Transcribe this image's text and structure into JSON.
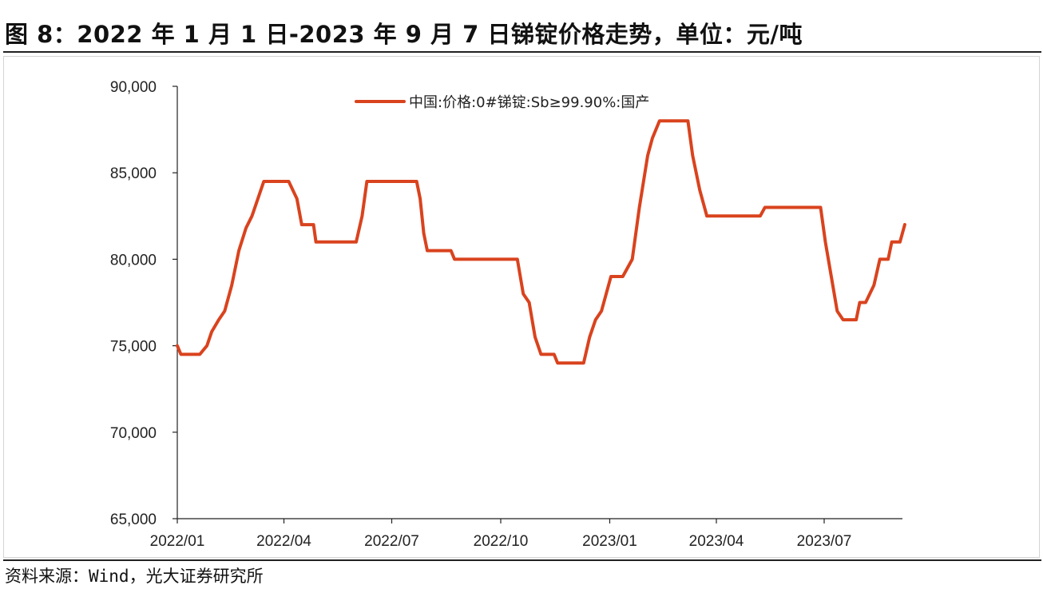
{
  "title": "图 8：2022 年 1 月 1 日-2023 年 9 月 7 日锑锭价格走势，单位：元/吨",
  "source": "资料来源：Wind，光大证券研究所",
  "chart_data": {
    "type": "line",
    "title": "图 8：2022 年 1 月 1 日-2023 年 9 月 7 日锑锭价格走势，单位：元/吨",
    "xlabel": "",
    "ylabel": "",
    "ylim": [
      65000,
      90000
    ],
    "y_ticks": [
      90000,
      85000,
      80000,
      75000,
      70000,
      65000
    ],
    "y_tick_labels": [
      "90,000",
      "85,000",
      "80,000",
      "75,000",
      "70,000",
      "65,000"
    ],
    "x_ticks": [
      "2022-01-01",
      "2022-04-01",
      "2022-07-01",
      "2022-10-01",
      "2023-01-01",
      "2023-04-01",
      "2023-07-01"
    ],
    "x_tick_labels": [
      "2022/01",
      "2022/04",
      "2022/07",
      "2022/10",
      "2023/01",
      "2023/04",
      "2023/07"
    ],
    "x_range": [
      "2022-01-01",
      "2023-09-07"
    ],
    "grid": false,
    "legend_position": "top-center",
    "series": [
      {
        "name": "中国:价格:0#锑锭:Sb≥99.90%:国产",
        "color": "#d9431e",
        "points": [
          [
            "2022-01-01",
            75000
          ],
          [
            "2022-01-04",
            74500
          ],
          [
            "2022-01-20",
            74500
          ],
          [
            "2022-01-26",
            75000
          ],
          [
            "2022-01-30",
            75800
          ],
          [
            "2022-02-05",
            76500
          ],
          [
            "2022-02-10",
            77000
          ],
          [
            "2022-02-16",
            78500
          ],
          [
            "2022-02-22",
            80500
          ],
          [
            "2022-02-28",
            81800
          ],
          [
            "2022-03-05",
            82500
          ],
          [
            "2022-03-10",
            83500
          ],
          [
            "2022-03-15",
            84500
          ],
          [
            "2022-04-05",
            84500
          ],
          [
            "2022-04-12",
            83500
          ],
          [
            "2022-04-16",
            82000
          ],
          [
            "2022-04-26",
            82000
          ],
          [
            "2022-04-28",
            81000
          ],
          [
            "2022-06-01",
            81000
          ],
          [
            "2022-06-06",
            82500
          ],
          [
            "2022-06-10",
            84500
          ],
          [
            "2022-07-22",
            84500
          ],
          [
            "2022-07-25",
            83500
          ],
          [
            "2022-07-28",
            81500
          ],
          [
            "2022-07-31",
            80500
          ],
          [
            "2022-08-20",
            80500
          ],
          [
            "2022-08-23",
            80000
          ],
          [
            "2022-10-15",
            80000
          ],
          [
            "2022-10-20",
            78000
          ],
          [
            "2022-10-25",
            77500
          ],
          [
            "2022-10-30",
            75500
          ],
          [
            "2022-11-04",
            74500
          ],
          [
            "2022-11-15",
            74500
          ],
          [
            "2022-11-18",
            74000
          ],
          [
            "2022-12-10",
            74000
          ],
          [
            "2022-12-15",
            75500
          ],
          [
            "2022-12-20",
            76500
          ],
          [
            "2022-12-25",
            77000
          ],
          [
            "2023-01-02",
            79000
          ],
          [
            "2023-01-12",
            79000
          ],
          [
            "2023-01-20",
            80000
          ],
          [
            "2023-01-26",
            83000
          ],
          [
            "2023-02-02",
            86000
          ],
          [
            "2023-02-06",
            87000
          ],
          [
            "2023-02-12",
            88000
          ],
          [
            "2023-03-08",
            88000
          ],
          [
            "2023-03-12",
            86000
          ],
          [
            "2023-03-18",
            84000
          ],
          [
            "2023-03-24",
            82500
          ],
          [
            "2023-05-08",
            82500
          ],
          [
            "2023-05-12",
            83000
          ],
          [
            "2023-06-28",
            83000
          ],
          [
            "2023-07-02",
            81000
          ],
          [
            "2023-07-07",
            79000
          ],
          [
            "2023-07-12",
            77000
          ],
          [
            "2023-07-17",
            76500
          ],
          [
            "2023-07-28",
            76500
          ],
          [
            "2023-07-31",
            77500
          ],
          [
            "2023-08-05",
            77500
          ],
          [
            "2023-08-12",
            78500
          ],
          [
            "2023-08-17",
            80000
          ],
          [
            "2023-08-24",
            80000
          ],
          [
            "2023-08-27",
            81000
          ],
          [
            "2023-09-03",
            81000
          ],
          [
            "2023-09-07",
            82000
          ]
        ]
      }
    ]
  }
}
